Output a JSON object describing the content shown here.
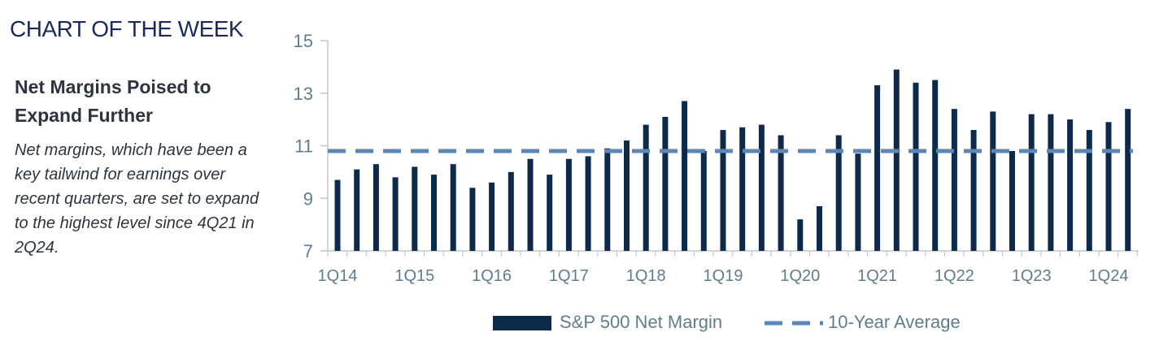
{
  "header": {
    "title": "CHART OF THE WEEK"
  },
  "chart_data": {
    "type": "bar",
    "title": "Net Margins Poised to Expand Further",
    "subtitle": "Net margins, which have been a key tailwind for earnings over recent quarters, are set to expand to the highest level since 4Q21 in 2Q24.",
    "xlabel": "",
    "ylabel": "",
    "ylim": [
      7,
      15
    ],
    "yticks": [
      7,
      9,
      11,
      13,
      15
    ],
    "categories": [
      "1Q14",
      "2Q14",
      "3Q14",
      "4Q14",
      "1Q15",
      "2Q15",
      "3Q15",
      "4Q15",
      "1Q16",
      "2Q16",
      "3Q16",
      "4Q16",
      "1Q17",
      "2Q17",
      "3Q17",
      "4Q17",
      "1Q18",
      "2Q18",
      "3Q18",
      "4Q18",
      "1Q19",
      "2Q19",
      "3Q19",
      "4Q19",
      "1Q20",
      "2Q20",
      "3Q20",
      "4Q20",
      "1Q21",
      "2Q21",
      "3Q21",
      "4Q21",
      "1Q22",
      "2Q22",
      "3Q22",
      "4Q22",
      "1Q23",
      "2Q23",
      "3Q23",
      "4Q23",
      "1Q24",
      "2Q24"
    ],
    "x_tick_labels": [
      "1Q14",
      "1Q15",
      "1Q16",
      "1Q17",
      "1Q18",
      "1Q19",
      "1Q20",
      "1Q21",
      "1Q22",
      "1Q23",
      "1Q24"
    ],
    "series": [
      {
        "name": "S&P 500 Net Margin",
        "color": "#0d2a4a",
        "values": [
          9.7,
          10.1,
          10.3,
          9.8,
          10.2,
          9.9,
          10.3,
          9.4,
          9.6,
          10.0,
          10.5,
          9.9,
          10.5,
          10.6,
          10.9,
          11.2,
          11.8,
          12.1,
          12.7,
          10.8,
          11.6,
          11.7,
          11.8,
          11.4,
          8.2,
          8.7,
          11.4,
          10.7,
          13.3,
          13.9,
          13.4,
          13.5,
          12.4,
          11.6,
          12.3,
          10.8,
          12.2,
          12.2,
          12.0,
          11.6,
          11.9,
          12.4
        ]
      },
      {
        "name": "10-Year Average",
        "color": "#5b86b5",
        "type": "line",
        "style": "dashed",
        "value": 10.8
      }
    ],
    "legend_position": "bottom-center",
    "grid": false
  }
}
